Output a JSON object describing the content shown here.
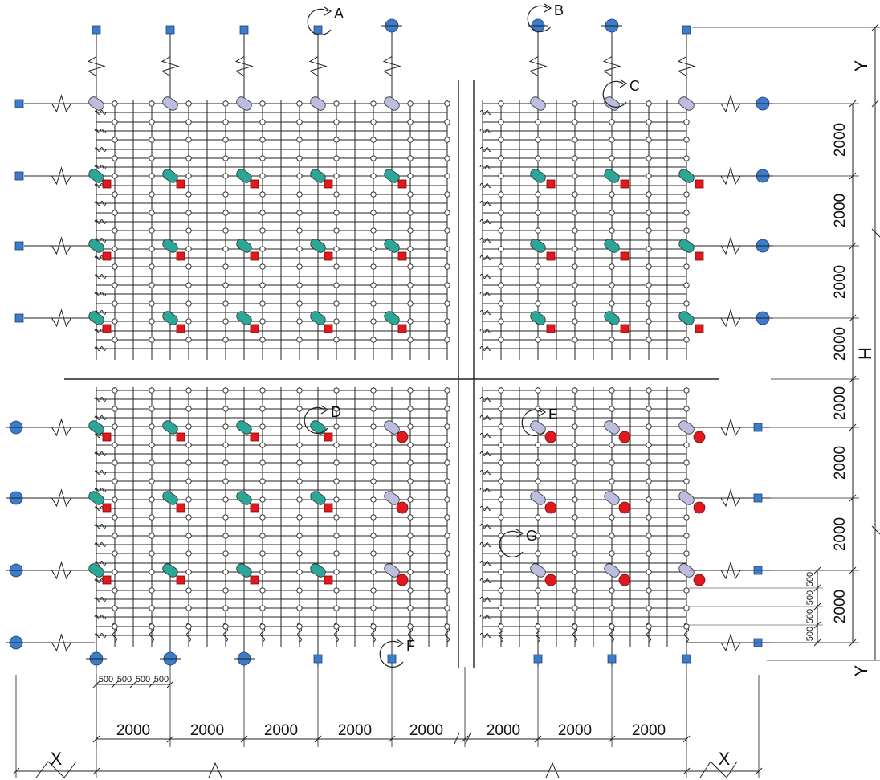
{
  "dimensions": {
    "spacing_label": "2000",
    "sub_spacing_label": "500",
    "x_label": "X",
    "y_label": "Y",
    "h_label": "H"
  },
  "location_labels": [
    "A",
    "B",
    "C",
    "D",
    "E",
    "F",
    "G"
  ],
  "colors": {
    "square_support": "#3d7cc9",
    "circle_support": "#3d7cc9",
    "capsule_lilac": "#bdbde0",
    "capsule_teal": "#2aa796",
    "red_marker": "#e0191e",
    "line": "#222222"
  },
  "legend_shapes": [
    "blue-square-support",
    "blue-circle-support",
    "lilac-capsule",
    "teal-capsule",
    "red-square",
    "red-circle",
    "node-circle",
    "spring"
  ]
}
